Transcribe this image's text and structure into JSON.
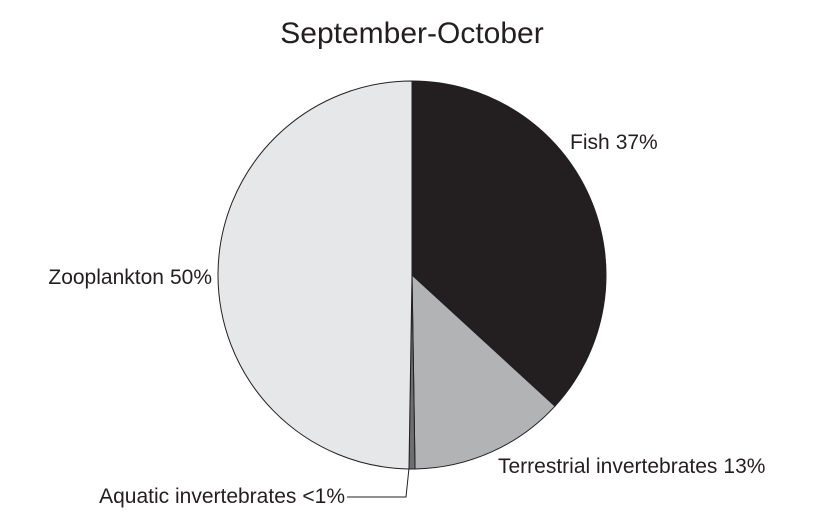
{
  "chart_data": {
    "type": "pie",
    "title": "September-October",
    "categories": [
      "Fish",
      "Terrestrial invertebrates",
      "Aquatic invertebrates",
      "Zooplankton"
    ],
    "values": [
      37,
      13,
      0.5,
      50
    ],
    "value_labels": [
      "37%",
      "13%",
      "<1%",
      "50%"
    ],
    "colors": [
      "#231f20",
      "#b1b3b5",
      "#6d6e71",
      "#e6e7e8"
    ]
  }
}
